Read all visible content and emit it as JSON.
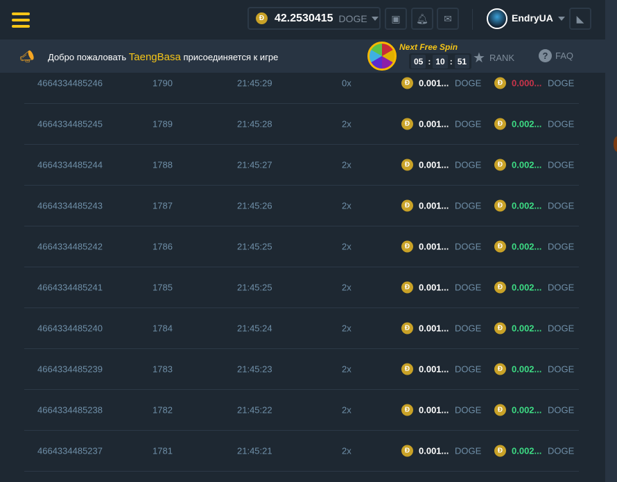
{
  "header": {
    "balance": "42.2530415",
    "currency": "DOGE",
    "username": "EndryUA"
  },
  "banner": {
    "welcome": "Добро пожаловать",
    "player": "TaengBasa",
    "joined": "присоединяется к игре",
    "next_free_spin": "Next Free Spin",
    "timer": [
      "05",
      "10",
      "51"
    ],
    "rank": "RANK",
    "faq": "FAQ"
  },
  "colors": {
    "accent": "#f5c518",
    "win": "#3ddc84",
    "loss": "#c9344a"
  },
  "rows": [
    {
      "id": "4664334485246",
      "num": "1790",
      "time": "21:45:29",
      "mult": "0x",
      "bet": "0.001...",
      "bet_cur": "DOGE",
      "payout": "0.000...",
      "pay_cur": "DOGE",
      "result": "loss"
    },
    {
      "id": "4664334485245",
      "num": "1789",
      "time": "21:45:28",
      "mult": "2x",
      "bet": "0.001...",
      "bet_cur": "DOGE",
      "payout": "0.002...",
      "pay_cur": "DOGE",
      "result": "win"
    },
    {
      "id": "4664334485244",
      "num": "1788",
      "time": "21:45:27",
      "mult": "2x",
      "bet": "0.001...",
      "bet_cur": "DOGE",
      "payout": "0.002...",
      "pay_cur": "DOGE",
      "result": "win"
    },
    {
      "id": "4664334485243",
      "num": "1787",
      "time": "21:45:26",
      "mult": "2x",
      "bet": "0.001...",
      "bet_cur": "DOGE",
      "payout": "0.002...",
      "pay_cur": "DOGE",
      "result": "win"
    },
    {
      "id": "4664334485242",
      "num": "1786",
      "time": "21:45:25",
      "mult": "2x",
      "bet": "0.001...",
      "bet_cur": "DOGE",
      "payout": "0.002...",
      "pay_cur": "DOGE",
      "result": "win"
    },
    {
      "id": "4664334485241",
      "num": "1785",
      "time": "21:45:25",
      "mult": "2x",
      "bet": "0.001...",
      "bet_cur": "DOGE",
      "payout": "0.002...",
      "pay_cur": "DOGE",
      "result": "win"
    },
    {
      "id": "4664334485240",
      "num": "1784",
      "time": "21:45:24",
      "mult": "2x",
      "bet": "0.001...",
      "bet_cur": "DOGE",
      "payout": "0.002...",
      "pay_cur": "DOGE",
      "result": "win"
    },
    {
      "id": "4664334485239",
      "num": "1783",
      "time": "21:45:23",
      "mult": "2x",
      "bet": "0.001...",
      "bet_cur": "DOGE",
      "payout": "0.002...",
      "pay_cur": "DOGE",
      "result": "win"
    },
    {
      "id": "4664334485238",
      "num": "1782",
      "time": "21:45:22",
      "mult": "2x",
      "bet": "0.001...",
      "bet_cur": "DOGE",
      "payout": "0.002...",
      "pay_cur": "DOGE",
      "result": "win"
    },
    {
      "id": "4664334485237",
      "num": "1781",
      "time": "21:45:21",
      "mult": "2x",
      "bet": "0.001...",
      "bet_cur": "DOGE",
      "payout": "0.002...",
      "pay_cur": "DOGE",
      "result": "win"
    }
  ]
}
